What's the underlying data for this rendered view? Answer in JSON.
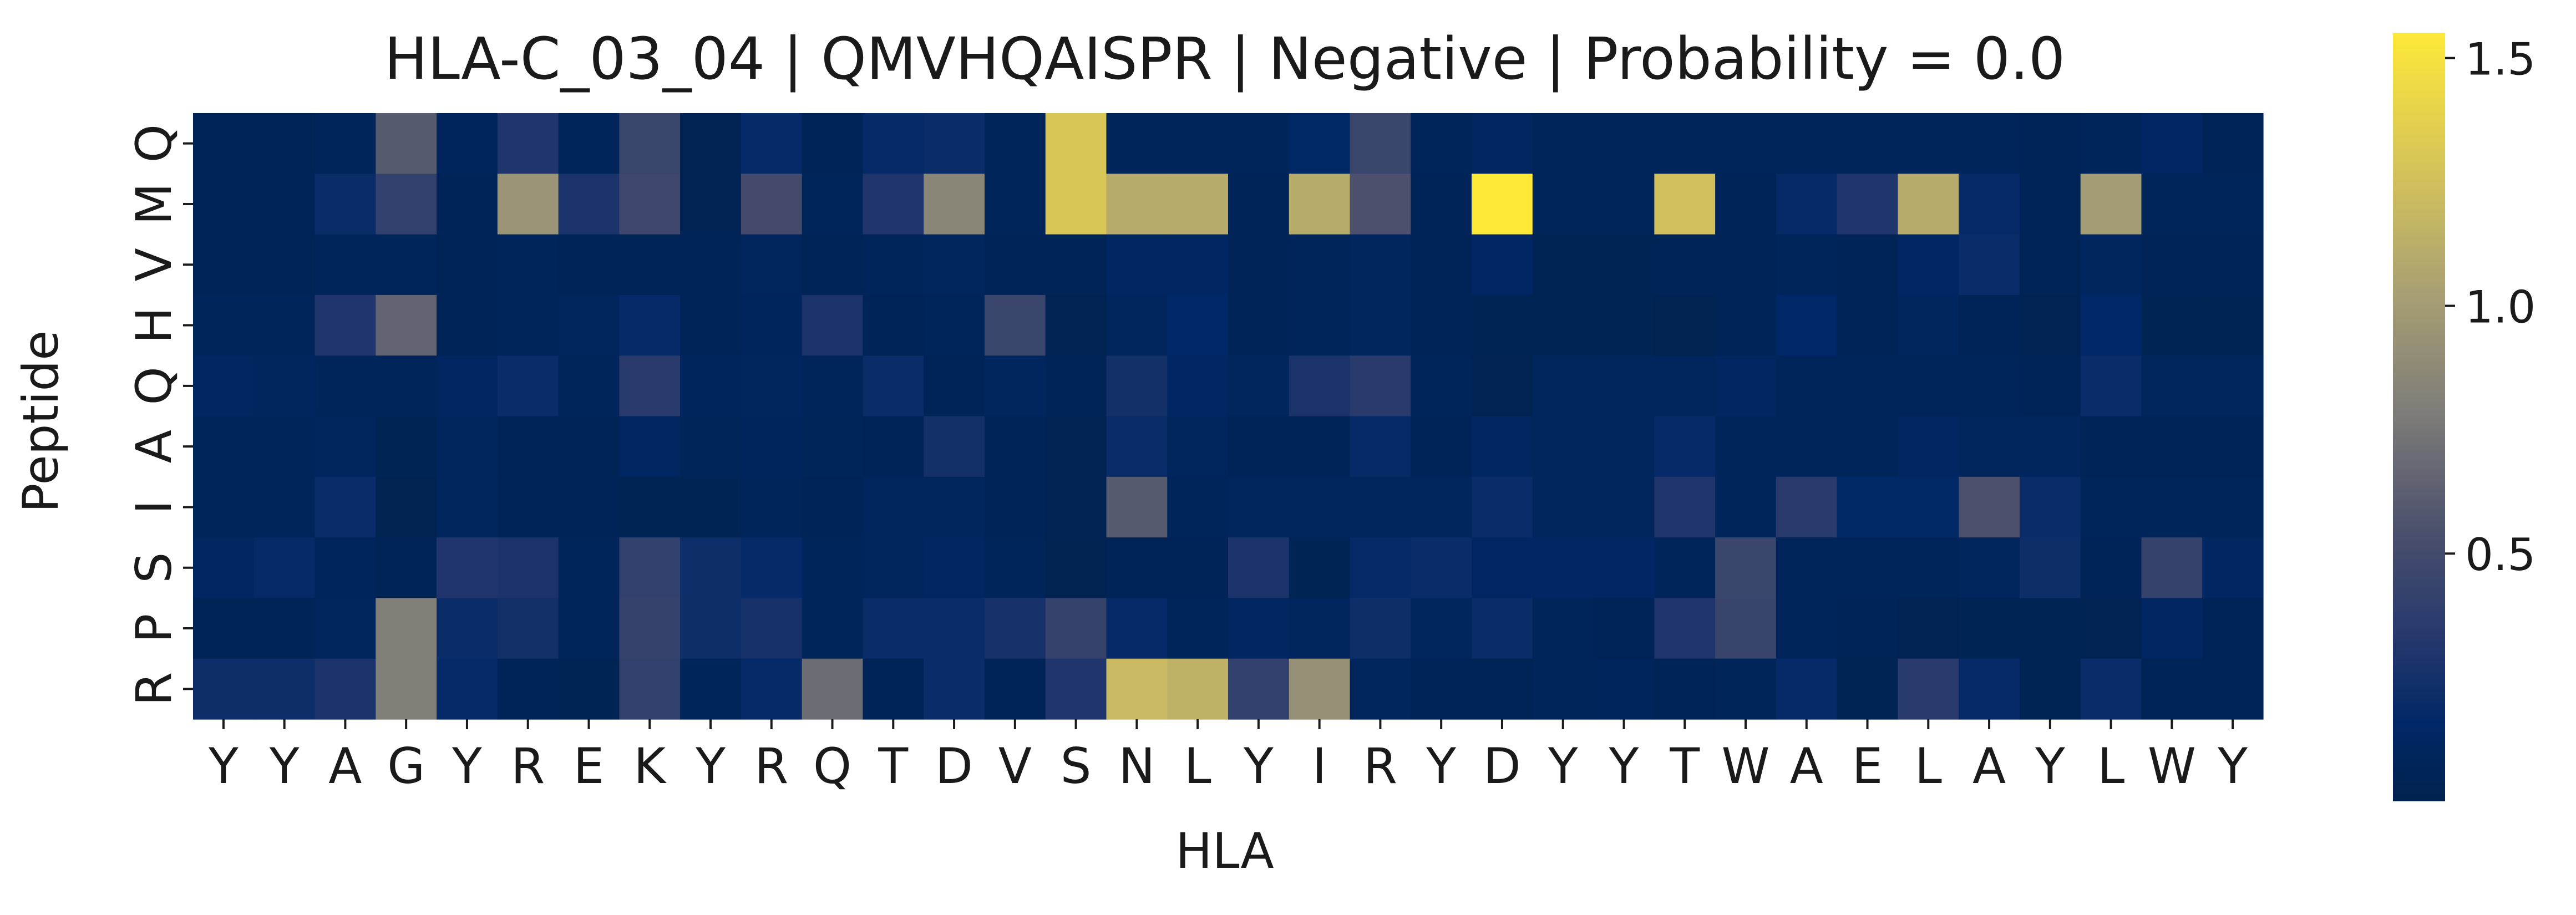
{
  "chart_data": {
    "type": "heatmap",
    "title": "HLA-C_03_04 | QMVHQAISPR | Negative | Probability = 0.0",
    "xlabel": "HLA",
    "ylabel": "Peptide",
    "x_categories": [
      "Y",
      "Y",
      "A",
      "G",
      "Y",
      "R",
      "E",
      "K",
      "Y",
      "R",
      "Q",
      "T",
      "D",
      "V",
      "S",
      "N",
      "L",
      "Y",
      "I",
      "R",
      "Y",
      "D",
      "Y",
      "Y",
      "T",
      "W",
      "A",
      "E",
      "L",
      "A",
      "Y",
      "L",
      "W",
      "Y"
    ],
    "y_categories": [
      "Q",
      "M",
      "V",
      "H",
      "Q",
      "A",
      "I",
      "S",
      "P",
      "R"
    ],
    "colormap": "cividis",
    "colorbar": {
      "min": 0.0,
      "max": 1.55,
      "ticks": [
        0.5,
        1.0,
        1.5
      ],
      "tick_labels": [
        "0.5",
        "1.0",
        "1.5"
      ]
    },
    "values": [
      [
        0.05,
        0.05,
        0.08,
        0.6,
        0.09,
        0.3,
        0.08,
        0.45,
        0.03,
        0.18,
        0.06,
        0.18,
        0.2,
        0.08,
        1.3,
        0.08,
        0.08,
        0.08,
        0.15,
        0.45,
        0.08,
        0.12,
        0.08,
        0.08,
        0.08,
        0.08,
        0.08,
        0.08,
        0.08,
        0.08,
        0.06,
        0.08,
        0.14,
        0.06
      ],
      [
        0.05,
        0.05,
        0.2,
        0.4,
        0.06,
        0.95,
        0.28,
        0.48,
        0.03,
        0.5,
        0.08,
        0.3,
        0.85,
        0.08,
        1.3,
        1.1,
        1.1,
        0.06,
        1.1,
        0.55,
        0.06,
        1.55,
        0.08,
        0.08,
        1.25,
        0.06,
        0.18,
        0.3,
        1.1,
        0.18,
        0.05,
        1.0,
        0.08,
        0.08
      ],
      [
        0.05,
        0.05,
        0.08,
        0.08,
        0.05,
        0.08,
        0.05,
        0.05,
        0.05,
        0.1,
        0.05,
        0.08,
        0.1,
        0.06,
        0.05,
        0.12,
        0.12,
        0.06,
        0.08,
        0.1,
        0.06,
        0.14,
        0.04,
        0.04,
        0.05,
        0.06,
        0.08,
        0.05,
        0.14,
        0.2,
        0.05,
        0.11,
        0.06,
        0.06
      ],
      [
        0.08,
        0.08,
        0.3,
        0.65,
        0.06,
        0.08,
        0.1,
        0.18,
        0.06,
        0.09,
        0.28,
        0.05,
        0.08,
        0.45,
        0.03,
        0.1,
        0.16,
        0.06,
        0.08,
        0.1,
        0.06,
        0.04,
        0.04,
        0.04,
        0.02,
        0.06,
        0.16,
        0.05,
        0.11,
        0.06,
        0.03,
        0.16,
        0.04,
        0.04
      ],
      [
        0.12,
        0.11,
        0.08,
        0.08,
        0.13,
        0.2,
        0.08,
        0.35,
        0.09,
        0.11,
        0.08,
        0.2,
        0.06,
        0.11,
        0.05,
        0.24,
        0.14,
        0.1,
        0.28,
        0.35,
        0.08,
        0.03,
        0.1,
        0.1,
        0.1,
        0.12,
        0.08,
        0.08,
        0.08,
        0.08,
        0.06,
        0.2,
        0.1,
        0.1
      ],
      [
        0.08,
        0.08,
        0.1,
        0.04,
        0.1,
        0.06,
        0.05,
        0.12,
        0.07,
        0.09,
        0.07,
        0.06,
        0.24,
        0.06,
        0.03,
        0.2,
        0.1,
        0.06,
        0.06,
        0.18,
        0.06,
        0.12,
        0.1,
        0.1,
        0.18,
        0.08,
        0.08,
        0.08,
        0.12,
        0.1,
        0.1,
        0.06,
        0.06,
        0.06
      ],
      [
        0.08,
        0.08,
        0.2,
        0.02,
        0.1,
        0.06,
        0.06,
        0.04,
        0.04,
        0.08,
        0.06,
        0.1,
        0.1,
        0.06,
        0.03,
        0.6,
        0.08,
        0.1,
        0.1,
        0.1,
        0.1,
        0.2,
        0.1,
        0.1,
        0.3,
        0.08,
        0.35,
        0.15,
        0.15,
        0.55,
        0.2,
        0.08,
        0.08,
        0.08
      ],
      [
        0.13,
        0.18,
        0.09,
        0.05,
        0.3,
        0.28,
        0.08,
        0.4,
        0.22,
        0.18,
        0.08,
        0.1,
        0.12,
        0.08,
        0.02,
        0.05,
        0.06,
        0.28,
        0.04,
        0.18,
        0.2,
        0.14,
        0.14,
        0.14,
        0.08,
        0.45,
        0.08,
        0.08,
        0.08,
        0.1,
        0.22,
        0.06,
        0.42,
        0.12
      ],
      [
        0.05,
        0.05,
        0.1,
        0.8,
        0.2,
        0.24,
        0.08,
        0.42,
        0.22,
        0.26,
        0.08,
        0.2,
        0.2,
        0.26,
        0.42,
        0.18,
        0.08,
        0.12,
        0.11,
        0.22,
        0.1,
        0.2,
        0.08,
        0.06,
        0.3,
        0.44,
        0.08,
        0.05,
        0.03,
        0.04,
        0.04,
        0.03,
        0.12,
        0.06
      ],
      [
        0.22,
        0.22,
        0.28,
        0.8,
        0.18,
        0.06,
        0.04,
        0.4,
        0.08,
        0.18,
        0.7,
        0.06,
        0.2,
        0.06,
        0.3,
        1.2,
        1.15,
        0.4,
        0.92,
        0.1,
        0.06,
        0.05,
        0.08,
        0.09,
        0.05,
        0.07,
        0.18,
        0.04,
        0.35,
        0.18,
        0.04,
        0.2,
        0.06,
        0.06
      ]
    ]
  }
}
